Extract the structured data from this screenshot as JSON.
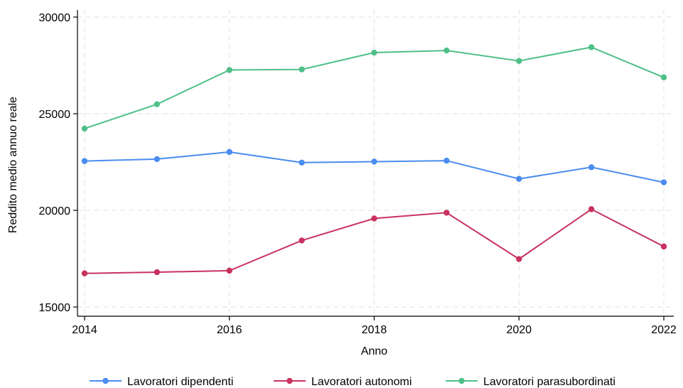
{
  "chart_data": {
    "type": "line",
    "xlabel": "Anno",
    "ylabel": "Reddito medio annuo reale",
    "x": [
      2014,
      2015,
      2016,
      2017,
      2018,
      2019,
      2020,
      2021,
      2022
    ],
    "xlim": [
      2014,
      2022
    ],
    "ylim": [
      15000,
      30000
    ],
    "x_ticks": [
      "2014",
      "2016",
      "2018",
      "2020",
      "2022"
    ],
    "y_ticks": [
      "15000",
      "20000",
      "25000",
      "30000"
    ],
    "grid": true,
    "legend_position": "bottom",
    "series": [
      {
        "name": "Lavoratori dipendenti",
        "color": "#4a8cf0",
        "values": [
          22550,
          22650,
          23020,
          22470,
          22520,
          22570,
          21630,
          22230,
          21450
        ]
      },
      {
        "name": "Lavoratori autonomi",
        "color": "#c8325f",
        "values": [
          16740,
          16800,
          16880,
          18440,
          19580,
          19880,
          17480,
          20060,
          18130
        ]
      },
      {
        "name": "Lavoratori parasubordinati",
        "color": "#4fbf88",
        "values": [
          24230,
          25490,
          27260,
          27290,
          28160,
          28270,
          27730,
          28440,
          26880
        ]
      }
    ]
  }
}
